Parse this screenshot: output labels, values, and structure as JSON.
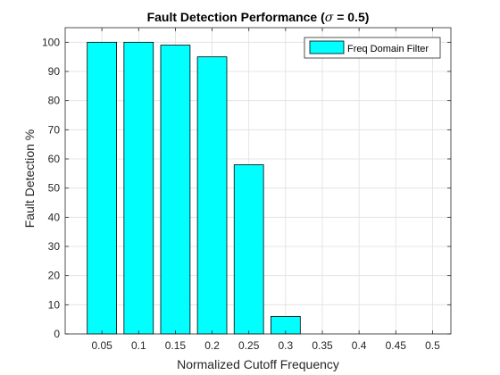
{
  "chart_data": {
    "type": "bar",
    "title_prefix": "Fault Detection Performance (",
    "title_symbol": "σ",
    "title_suffix": " = 0.5)",
    "xlabel": "Normalized Cutoff Frequency",
    "ylabel": "Fault Detection %",
    "x": [
      0.05,
      0.1,
      0.15,
      0.2,
      0.25,
      0.3,
      0.35,
      0.4,
      0.45,
      0.5
    ],
    "xticklabels": [
      "0.05",
      "0.1",
      "0.15",
      "0.2",
      "0.25",
      "0.3",
      "0.35",
      "0.4",
      "0.45",
      "0.5"
    ],
    "series": [
      {
        "name": "Freq Domain Filter",
        "color": "#00ffff",
        "values": [
          100,
          100,
          99,
          95,
          58,
          6,
          0,
          0,
          0,
          0
        ]
      }
    ],
    "xlim": [
      0,
      0.525
    ],
    "ylim": [
      0,
      105
    ],
    "yticks": [
      0,
      10,
      20,
      30,
      40,
      50,
      60,
      70,
      80,
      90,
      100
    ],
    "grid": true,
    "legend_position": "top-right"
  }
}
